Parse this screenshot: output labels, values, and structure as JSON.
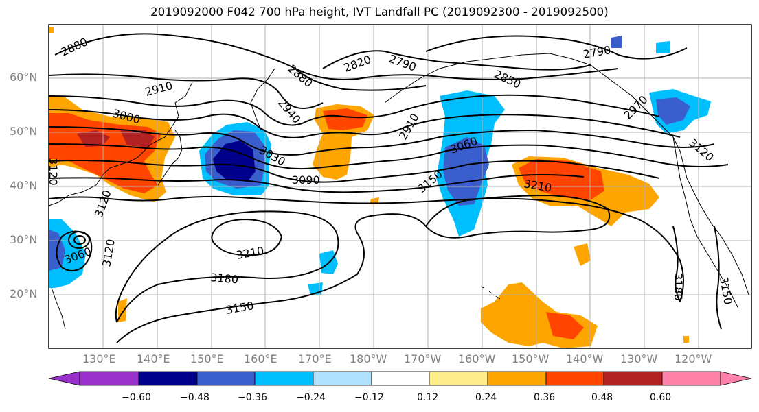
{
  "title": "2019092000 F042 700 hPa height, IVT Landfall PC (2019092300 - 2019092500)",
  "map": {
    "lat_labels": [
      "60°N",
      "50°N",
      "40°N",
      "30°N",
      "20°N"
    ],
    "lon_labels": [
      "130°E",
      "140°E",
      "150°E",
      "160°E",
      "170°E",
      "180°W",
      "170°W",
      "160°W",
      "150°W",
      "140°W",
      "130°W",
      "120°W"
    ],
    "contour_labels": [
      "2880",
      "2910",
      "3000",
      "2820",
      "2790",
      "2790",
      "2880",
      "2940",
      "2850",
      "2910",
      "3030",
      "3060",
      "3090",
      "3150",
      "3210",
      "3210",
      "3180",
      "3150",
      "3060",
      "3120",
      "3180",
      "3150",
      "3120",
      "3120",
      "2970",
      "3120"
    ],
    "grid": true,
    "field_colors": {
      "negative_strong": "#00008b",
      "negative_mid": "#3a5fcd",
      "negative_weak": "#00bfff",
      "positive_weak": "#ffa500",
      "positive_mid": "#ff4500",
      "positive_strong": "#b22222"
    }
  },
  "colorbar": {
    "ticks": [
      "−0.60",
      "−0.48",
      "−0.36",
      "−0.24",
      "−0.12",
      "0.12",
      "0.24",
      "0.36",
      "0.48",
      "0.60"
    ],
    "colors": [
      "#9932cc",
      "#00008b",
      "#3a5fcd",
      "#00bfff",
      "#b0e2ff",
      "#ffffff",
      "#ffec8b",
      "#ffa500",
      "#ff4500",
      "#b22222",
      "#ff82ab"
    ]
  }
}
